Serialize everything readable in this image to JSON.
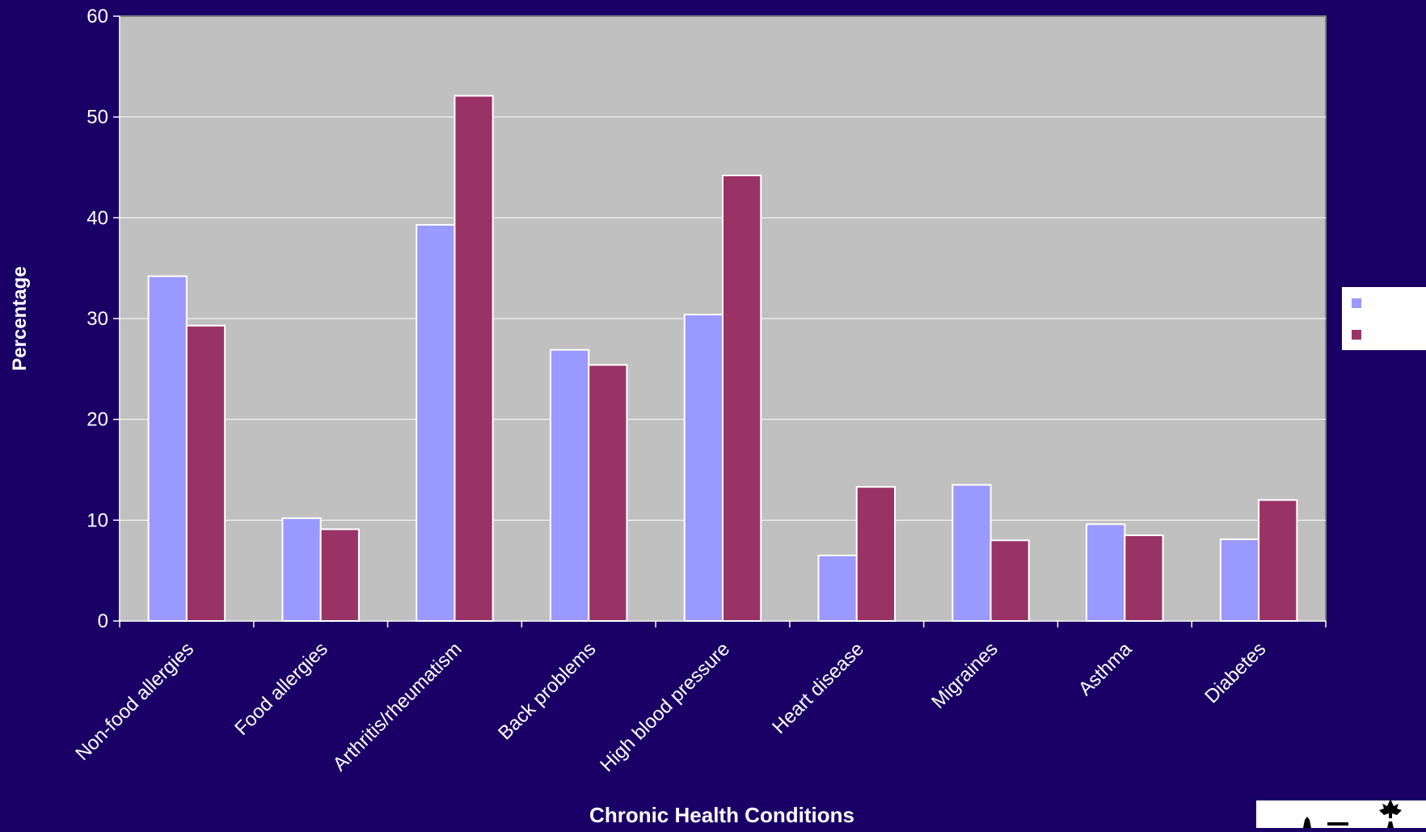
{
  "colors": {
    "background": "#1a0066",
    "plot_area": "#c0c0c0",
    "gridline": "#ffffff",
    "axis_text": "#ffffff",
    "legend_box": "#ffffff"
  },
  "chart_data": {
    "type": "bar",
    "title": "",
    "xlabel": "Chronic Health Conditions",
    "ylabel": "Percentage",
    "ylim": [
      0,
      60
    ],
    "yticks": [
      0,
      10,
      20,
      30,
      40,
      50,
      60
    ],
    "grid": true,
    "legend_position": "right",
    "categories": [
      "Non-food allergies",
      "Food allergies",
      "Arthritis/rheumatism",
      "Back problems",
      "High blood pressure",
      "Heart disease",
      "Migraines",
      "Asthma",
      "Diabetes"
    ],
    "series": [
      {
        "name": "",
        "color": "#9999ff",
        "values": [
          34.2,
          10.2,
          39.3,
          26.9,
          30.4,
          6.5,
          13.5,
          9.6,
          8.1
        ]
      },
      {
        "name": "",
        "color": "#993366",
        "values": [
          29.3,
          9.1,
          52.1,
          25.4,
          44.2,
          13.3,
          8.0,
          8.5,
          12.0
        ]
      }
    ]
  },
  "logo": {
    "icon": "maple-leaf-logo"
  }
}
